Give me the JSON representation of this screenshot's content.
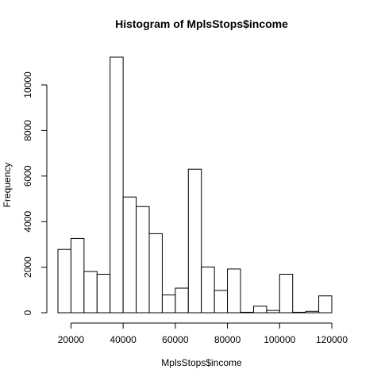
{
  "chart_data": {
    "type": "bar",
    "title": "Histogram of MplsStops$income",
    "xlabel": "MplsStops$income",
    "ylabel": "Frequency",
    "bin_width": 5000,
    "x_start": 15000,
    "bins": [
      {
        "from": 15000,
        "to": 20000,
        "count": 2780
      },
      {
        "from": 20000,
        "to": 25000,
        "count": 3260
      },
      {
        "from": 25000,
        "to": 30000,
        "count": 1810
      },
      {
        "from": 30000,
        "to": 35000,
        "count": 1690
      },
      {
        "from": 35000,
        "to": 40000,
        "count": 11220
      },
      {
        "from": 40000,
        "to": 45000,
        "count": 5080
      },
      {
        "from": 45000,
        "to": 50000,
        "count": 4660
      },
      {
        "from": 50000,
        "to": 55000,
        "count": 3470
      },
      {
        "from": 55000,
        "to": 60000,
        "count": 780
      },
      {
        "from": 60000,
        "to": 65000,
        "count": 1080
      },
      {
        "from": 65000,
        "to": 70000,
        "count": 6300
      },
      {
        "from": 70000,
        "to": 75000,
        "count": 2010
      },
      {
        "from": 75000,
        "to": 80000,
        "count": 980
      },
      {
        "from": 80000,
        "to": 85000,
        "count": 1920
      },
      {
        "from": 85000,
        "to": 90000,
        "count": 20
      },
      {
        "from": 90000,
        "to": 95000,
        "count": 290
      },
      {
        "from": 95000,
        "to": 100000,
        "count": 100
      },
      {
        "from": 100000,
        "to": 105000,
        "count": 1690
      },
      {
        "from": 105000,
        "to": 110000,
        "count": 20
      },
      {
        "from": 110000,
        "to": 115000,
        "count": 60
      },
      {
        "from": 115000,
        "to": 120000,
        "count": 740
      }
    ],
    "x_ticks": [
      20000,
      40000,
      60000,
      80000,
      100000,
      120000
    ],
    "y_ticks": [
      0,
      2000,
      4000,
      6000,
      8000,
      10000
    ],
    "xlim": [
      15000,
      120000
    ],
    "ylim": [
      0,
      11220
    ],
    "grid": false,
    "legend": "none",
    "colors": {
      "bar_fill": "#ffffff",
      "bar_stroke": "#000000"
    }
  }
}
